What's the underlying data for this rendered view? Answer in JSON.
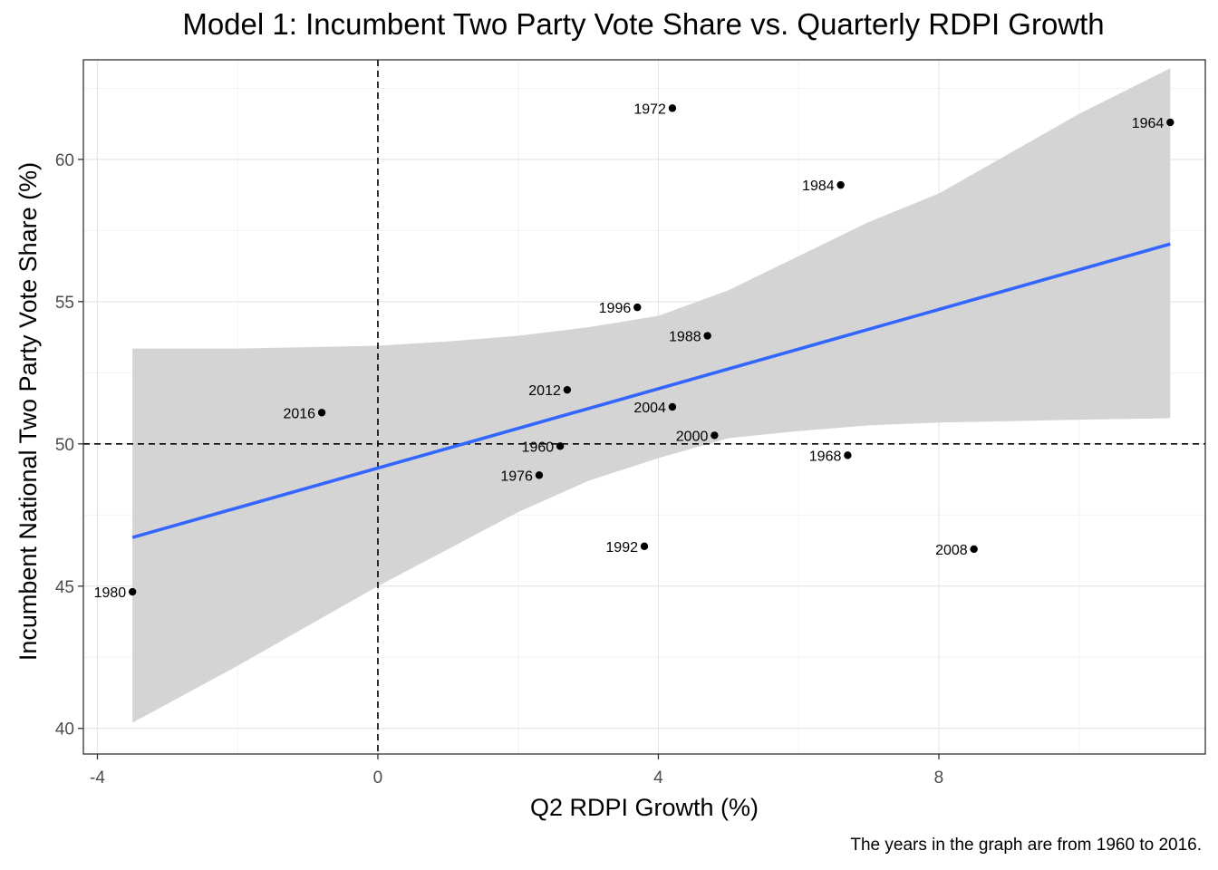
{
  "chart_data": {
    "type": "scatter",
    "title": "Model 1: Incumbent Two Party Vote Share vs. Quarterly RDPI Growth",
    "xlabel": "Q2 RDPI Growth (%)",
    "ylabel": "Incumbent National Two Party Vote Share (%)",
    "caption": "The years in the graph are from 1960 to 2016.",
    "xlim": [
      -4.2,
      11.8
    ],
    "ylim": [
      39.1,
      63.5
    ],
    "x_ticks": [
      -4,
      0,
      4,
      8
    ],
    "x_tick_labels": [
      "-4",
      "0",
      "4",
      "8"
    ],
    "y_ticks": [
      40,
      45,
      50,
      55,
      60
    ],
    "y_tick_labels": [
      "40",
      "45",
      "50",
      "55",
      "60"
    ],
    "grid": true,
    "reference_lines": {
      "x": 0,
      "y": 50
    },
    "points": [
      {
        "year": "1960",
        "x": 2.6,
        "y": 49.92
      },
      {
        "year": "1964",
        "x": 11.3,
        "y": 61.3
      },
      {
        "year": "1968",
        "x": 6.7,
        "y": 49.6
      },
      {
        "year": "1972",
        "x": 4.2,
        "y": 61.8
      },
      {
        "year": "1976",
        "x": 2.3,
        "y": 48.9
      },
      {
        "year": "1980",
        "x": -3.5,
        "y": 44.8
      },
      {
        "year": "1984",
        "x": 6.6,
        "y": 59.1
      },
      {
        "year": "1988",
        "x": 4.7,
        "y": 53.8
      },
      {
        "year": "1992",
        "x": 3.8,
        "y": 46.4
      },
      {
        "year": "1996",
        "x": 3.7,
        "y": 54.8
      },
      {
        "year": "2000",
        "x": 4.8,
        "y": 50.3
      },
      {
        "year": "2004",
        "x": 4.2,
        "y": 51.3
      },
      {
        "year": "2008",
        "x": 8.5,
        "y": 46.3
      },
      {
        "year": "2012",
        "x": 2.7,
        "y": 51.9
      },
      {
        "year": "2016",
        "x": -0.8,
        "y": 51.1
      }
    ],
    "fit": {
      "method": "linear",
      "x_range": [
        -3.5,
        11.3
      ],
      "intercept": 49.15,
      "slope": 0.697,
      "line_color": "#3366ff",
      "band_color": "#d4d4d4",
      "confidence_band": [
        {
          "x": -3.5,
          "lower": 40.2,
          "upper": 53.35
        },
        {
          "x": -2,
          "lower": 42.2,
          "upper": 53.35
        },
        {
          "x": 0,
          "lower": 45.0,
          "upper": 53.45
        },
        {
          "x": 1,
          "lower": 46.3,
          "upper": 53.6
        },
        {
          "x": 2,
          "lower": 47.6,
          "upper": 53.8
        },
        {
          "x": 3,
          "lower": 48.7,
          "upper": 54.1
        },
        {
          "x": 4,
          "lower": 49.5,
          "upper": 54.5
        },
        {
          "x": 5,
          "lower": 50.2,
          "upper": 55.4
        },
        {
          "x": 6,
          "lower": 50.45,
          "upper": 56.6
        },
        {
          "x": 7,
          "lower": 50.65,
          "upper": 57.8
        },
        {
          "x": 8,
          "lower": 50.75,
          "upper": 58.8
        },
        {
          "x": 9,
          "lower": 50.8,
          "upper": 60.2
        },
        {
          "x": 10,
          "lower": 50.85,
          "upper": 61.6
        },
        {
          "x": 11.3,
          "lower": 50.9,
          "upper": 63.2
        }
      ]
    }
  }
}
